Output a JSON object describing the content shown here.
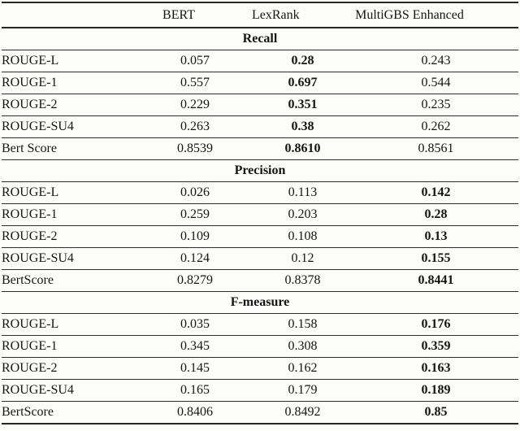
{
  "table": {
    "column_headers": [
      "BERT",
      "LexRank",
      "MultiGBS Enhanced"
    ],
    "sections": [
      {
        "title": "Recall",
        "bold_column": "LexRank",
        "rows": [
          {
            "metric": "ROUGE-L",
            "bert": "0.057",
            "lexrank": "0.28",
            "multigbs": "0.243"
          },
          {
            "metric": "ROUGE-1",
            "bert": "0.557",
            "lexrank": "0.697",
            "multigbs": "0.544"
          },
          {
            "metric": "ROUGE-2",
            "bert": "0.229",
            "lexrank": "0.351",
            "multigbs": "0.235"
          },
          {
            "metric": "ROUGE-SU4",
            "bert": "0.263",
            "lexrank": "0.38",
            "multigbs": "0.262"
          },
          {
            "metric": "Bert Score",
            "bert": "0.8539",
            "lexrank": "0.8610",
            "multigbs": "0.8561"
          }
        ]
      },
      {
        "title": "Precision",
        "bold_column": "MultiGBS Enhanced",
        "rows": [
          {
            "metric": "ROUGE-L",
            "bert": "0.026",
            "lexrank": "0.113",
            "multigbs": "0.142"
          },
          {
            "metric": "ROUGE-1",
            "bert": "0.259",
            "lexrank": "0.203",
            "multigbs": "0.28"
          },
          {
            "metric": "ROUGE-2",
            "bert": "0.109",
            "lexrank": "0.108",
            "multigbs": "0.13"
          },
          {
            "metric": "ROUGE-SU4",
            "bert": "0.124",
            "lexrank": "0.12",
            "multigbs": "0.155"
          },
          {
            "metric": "BertScore",
            "bert": "0.8279",
            "lexrank": "0.8378",
            "multigbs": "0.8441"
          }
        ]
      },
      {
        "title": "F-measure",
        "bold_column": "MultiGBS Enhanced",
        "rows": [
          {
            "metric": "ROUGE-L",
            "bert": "0.035",
            "lexrank": "0.158",
            "multigbs": "0.176"
          },
          {
            "metric": "ROUGE-1",
            "bert": "0.345",
            "lexrank": "0.308",
            "multigbs": "0.359"
          },
          {
            "metric": "ROUGE-2",
            "bert": "0.145",
            "lexrank": "0.162",
            "multigbs": "0.163"
          },
          {
            "metric": "ROUGE-SU4",
            "bert": "0.165",
            "lexrank": "0.179",
            "multigbs": "0.189"
          },
          {
            "metric": "BertScore",
            "bert": "0.8406",
            "lexrank": "0.8492",
            "multigbs": "0.85"
          }
        ]
      }
    ]
  }
}
